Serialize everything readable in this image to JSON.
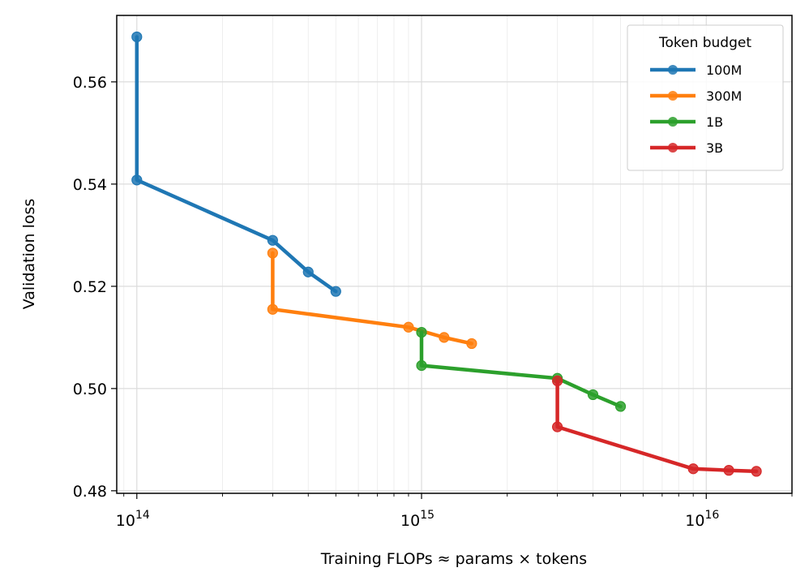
{
  "chart_data": {
    "type": "line",
    "title": "",
    "xlabel": "Training FLOPs ≈ params × tokens",
    "ylabel": "Validation loss",
    "xscale": "log",
    "xlim": [
      85000000000000.0,
      2e+16
    ],
    "ylim": [
      0.4795,
      0.573
    ],
    "grid": true,
    "y_ticks": [
      {
        "value": 0.48,
        "label": "0.48"
      },
      {
        "value": 0.5,
        "label": "0.50"
      },
      {
        "value": 0.52,
        "label": "0.52"
      },
      {
        "value": 0.54,
        "label": "0.54"
      },
      {
        "value": 0.56,
        "label": "0.56"
      }
    ],
    "x_ticks": [
      {
        "value": 100000000000000.0,
        "base": "10",
        "exp": "14"
      },
      {
        "value": 1000000000000000.0,
        "base": "10",
        "exp": "15"
      },
      {
        "value": 1e+16,
        "base": "10",
        "exp": "16"
      }
    ],
    "legend": {
      "title": "Token budget",
      "position": "top-right"
    },
    "series": [
      {
        "name": "100M",
        "color": "#1f77b4",
        "x": [
          100000000000000.0,
          100000000000000.0,
          300000000000000.0,
          400000000000000.0,
          500000000000000.0
        ],
        "y": [
          0.5688,
          0.5408,
          0.529,
          0.5228,
          0.519
        ]
      },
      {
        "name": "300M",
        "color": "#ff7f0e",
        "x": [
          300000000000000.0,
          300000000000000.0,
          900000000000000.0,
          1200000000000000.0,
          1500000000000000.0
        ],
        "y": [
          0.5265,
          0.5155,
          0.512,
          0.51,
          0.5088
        ]
      },
      {
        "name": "1B",
        "color": "#2ca02c",
        "x": [
          1000000000000000.0,
          1000000000000000.0,
          3000000000000000.0,
          4000000000000000.0,
          5000000000000000.0
        ],
        "y": [
          0.511,
          0.5045,
          0.502,
          0.4988,
          0.4965
        ]
      },
      {
        "name": "3B",
        "color": "#d62728",
        "x": [
          3000000000000000.0,
          3000000000000000.0,
          9000000000000000.0,
          1.2e+16,
          1.5e+16
        ],
        "y": [
          0.5015,
          0.4925,
          0.4843,
          0.484,
          0.4838
        ]
      }
    ]
  }
}
